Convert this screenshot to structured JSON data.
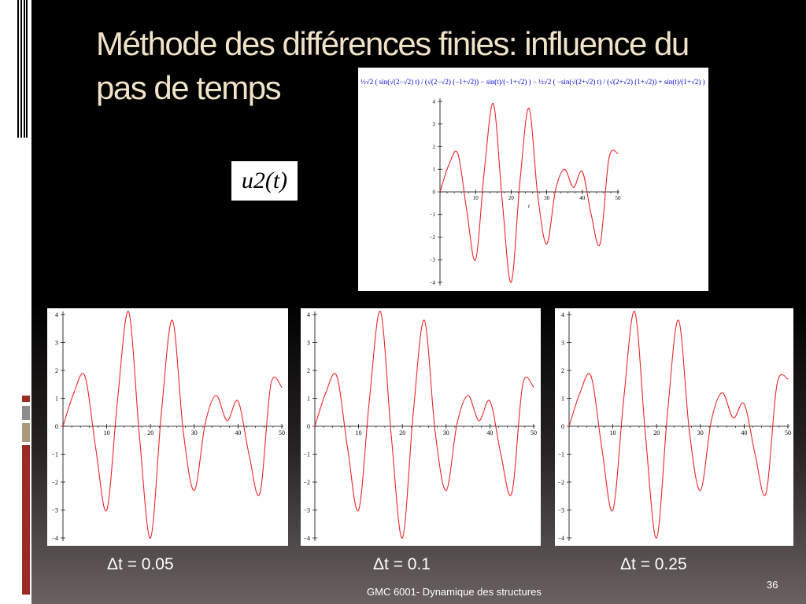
{
  "slide": {
    "title_line1": "Méthode des différences finies: influence du",
    "title_line2": "pas de temps",
    "function_label": "u2(t)",
    "formula": "½√2 ( sin(√(2−√2) t) / (√(2−√2) (−1+√2)) − sin(t)/(−1+√2) ) − ½√2 ( −sin(√(2+√2) t) / (√(2+√2) (1+√2)) + sin(t)/(1+√2) )",
    "footer": "GMC 6001-  Dynamique des structures",
    "page_number": "36"
  },
  "colors": {
    "title": "#f1e3c8",
    "curve": "#e8262a",
    "accent_red": "#9b2b25",
    "accent_gray": "#8c8c8c",
    "accent_tan": "#a89a7a"
  },
  "chart_data": [
    {
      "type": "line",
      "title": "",
      "xlabel": "t",
      "ylabel": "",
      "xlim": [
        0,
        50
      ],
      "ylim": [
        -4,
        4
      ],
      "x_ticks": [
        10,
        20,
        30,
        40,
        50
      ],
      "y_ticks": [
        4,
        3,
        2,
        1,
        0,
        -1,
        -2,
        -3,
        -4
      ],
      "x": [
        0,
        2.5,
        5,
        7.5,
        10,
        12.5,
        15,
        17.5,
        20,
        22.5,
        25,
        27.5,
        30,
        32.5,
        35,
        37.5,
        40,
        42.5,
        45,
        47.5,
        50
      ],
      "series": [
        {
          "name": "",
          "values": [
            0,
            1.2,
            1.7,
            -0.8,
            -3.0,
            1.0,
            3.9,
            -0.4,
            -4.0,
            0.5,
            3.7,
            -0.2,
            -2.3,
            0.1,
            1.0,
            0.2,
            0.9,
            -1.0,
            -2.3,
            1.5,
            1.7
          ]
        }
      ]
    },
    {
      "type": "line",
      "title": "",
      "label": "Δt = 0.05",
      "xlim": [
        0,
        50
      ],
      "ylim": [
        -4,
        4
      ],
      "x_ticks": [
        10,
        20,
        30,
        40,
        50
      ],
      "y_ticks": [
        4,
        3,
        2,
        1,
        0,
        -1,
        -2,
        -3,
        -4
      ],
      "x": [
        0,
        2.5,
        5,
        7.5,
        10,
        12.5,
        15,
        17.5,
        20,
        22.5,
        25,
        27.5,
        30,
        32.5,
        35,
        37.5,
        40,
        42.5,
        45,
        47.5,
        50
      ],
      "series": [
        {
          "name": "",
          "values": [
            0,
            1.2,
            1.8,
            -0.8,
            -3.0,
            1.0,
            4.1,
            -0.4,
            -4.0,
            0.5,
            3.8,
            -0.2,
            -2.3,
            0.1,
            1.1,
            0.2,
            0.9,
            -1.0,
            -2.4,
            1.5,
            1.4
          ]
        }
      ]
    },
    {
      "type": "line",
      "title": "",
      "label": "Δt = 0.1",
      "xlim": [
        0,
        50
      ],
      "ylim": [
        -4,
        4
      ],
      "x_ticks": [
        10,
        20,
        30,
        40,
        50
      ],
      "y_ticks": [
        4,
        3,
        2,
        1,
        0,
        -1,
        -2,
        -3,
        -4
      ],
      "x": [
        0,
        2.5,
        5,
        7.5,
        10,
        12.5,
        15,
        17.5,
        20,
        22.5,
        25,
        27.5,
        30,
        32.5,
        35,
        37.5,
        40,
        42.5,
        45,
        47.5,
        50
      ],
      "series": [
        {
          "name": "",
          "values": [
            0,
            1.2,
            1.8,
            -0.8,
            -3.0,
            1.0,
            4.1,
            -0.4,
            -4.0,
            0.5,
            3.8,
            -0.2,
            -2.3,
            0.1,
            1.1,
            0.2,
            0.9,
            -1.0,
            -2.4,
            1.5,
            1.4
          ]
        }
      ]
    },
    {
      "type": "line",
      "title": "",
      "label": "Δt = 0.25",
      "xlim": [
        0,
        50
      ],
      "ylim": [
        -4,
        4
      ],
      "x_ticks": [
        10,
        20,
        30,
        40,
        50
      ],
      "y_ticks": [
        4,
        3,
        2,
        1,
        0,
        -1,
        -2,
        -3,
        -4
      ],
      "x": [
        0,
        2.5,
        5,
        7.5,
        10,
        12.5,
        15,
        17.5,
        20,
        22.5,
        25,
        27.5,
        30,
        32.5,
        35,
        37.5,
        40,
        42.5,
        45,
        47.5,
        50
      ],
      "series": [
        {
          "name": "",
          "values": [
            0,
            1.2,
            1.8,
            -0.8,
            -3.0,
            1.0,
            4.1,
            -0.4,
            -4.0,
            0.5,
            3.8,
            -0.2,
            -2.3,
            0.2,
            1.2,
            0.3,
            0.8,
            -1.0,
            -2.4,
            1.5,
            1.7
          ]
        }
      ]
    }
  ]
}
